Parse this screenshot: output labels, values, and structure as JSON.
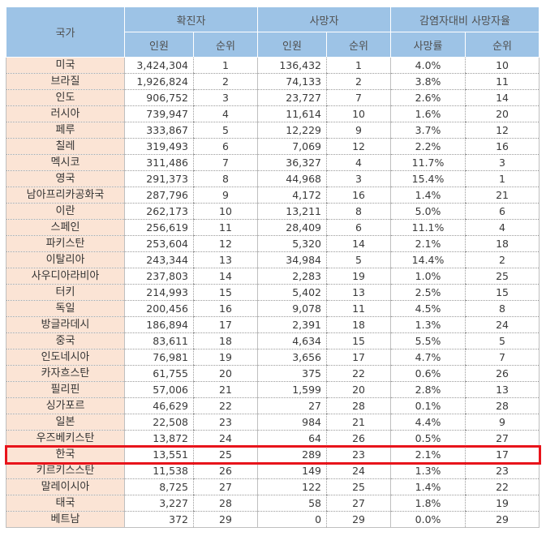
{
  "header": {
    "country": "국가",
    "groups": [
      "확진자",
      "사망자",
      "감염자대비 사망자율"
    ],
    "sub": [
      "인원",
      "순위",
      "인원",
      "순위",
      "사망률",
      "순위"
    ]
  },
  "rows": [
    [
      "미국",
      "3,424,304",
      "1",
      "136,432",
      "1",
      "4.0%",
      "10"
    ],
    [
      "브라질",
      "1,926,824",
      "2",
      "74,133",
      "2",
      "3.8%",
      "11"
    ],
    [
      "인도",
      "906,752",
      "3",
      "23,727",
      "7",
      "2.6%",
      "14"
    ],
    [
      "러시아",
      "739,947",
      "4",
      "11,614",
      "10",
      "1.6%",
      "20"
    ],
    [
      "페루",
      "333,867",
      "5",
      "12,229",
      "9",
      "3.7%",
      "12"
    ],
    [
      "칠레",
      "319,493",
      "6",
      "7,069",
      "12",
      "2.2%",
      "16"
    ],
    [
      "멕시코",
      "311,486",
      "7",
      "36,327",
      "4",
      "11.7%",
      "3"
    ],
    [
      "영국",
      "291,373",
      "8",
      "44,968",
      "3",
      "15.4%",
      "1"
    ],
    [
      "남아프리카공화국",
      "287,796",
      "9",
      "4,172",
      "16",
      "1.4%",
      "21"
    ],
    [
      "이란",
      "262,173",
      "10",
      "13,211",
      "8",
      "5.0%",
      "6"
    ],
    [
      "스페인",
      "256,619",
      "11",
      "28,409",
      "6",
      "11.1%",
      "4"
    ],
    [
      "파키스탄",
      "253,604",
      "12",
      "5,320",
      "14",
      "2.1%",
      "18"
    ],
    [
      "이탈리아",
      "243,344",
      "13",
      "34,984",
      "5",
      "14.4%",
      "2"
    ],
    [
      "사우디아라비아",
      "237,803",
      "14",
      "2,283",
      "19",
      "1.0%",
      "25"
    ],
    [
      "터키",
      "214,993",
      "15",
      "5,402",
      "13",
      "2.5%",
      "15"
    ],
    [
      "독일",
      "200,456",
      "16",
      "9,078",
      "11",
      "4.5%",
      "8"
    ],
    [
      "방글라데시",
      "186,894",
      "17",
      "2,391",
      "18",
      "1.3%",
      "24"
    ],
    [
      "중국",
      "83,611",
      "18",
      "4,634",
      "15",
      "5.5%",
      "5"
    ],
    [
      "인도네시아",
      "76,981",
      "19",
      "3,656",
      "17",
      "4.7%",
      "7"
    ],
    [
      "카자흐스탄",
      "61,755",
      "20",
      "375",
      "22",
      "0.6%",
      "26"
    ],
    [
      "필리핀",
      "57,006",
      "21",
      "1,599",
      "20",
      "2.8%",
      "13"
    ],
    [
      "싱가포르",
      "46,629",
      "22",
      "27",
      "28",
      "0.1%",
      "28"
    ],
    [
      "일본",
      "22,508",
      "23",
      "984",
      "21",
      "4.4%",
      "9"
    ],
    [
      "우즈베키스탄",
      "13,872",
      "24",
      "64",
      "26",
      "0.5%",
      "27"
    ],
    [
      "한국",
      "13,551",
      "25",
      "289",
      "23",
      "2.1%",
      "17"
    ],
    [
      "키르키스스탄",
      "11,538",
      "26",
      "149",
      "24",
      "1.3%",
      "23"
    ],
    [
      "말레이시아",
      "8,725",
      "27",
      "122",
      "25",
      "1.4%",
      "22"
    ],
    [
      "태국",
      "3,227",
      "28",
      "58",
      "27",
      "1.8%",
      "19"
    ],
    [
      "베트남",
      "372",
      "29",
      "0",
      "29",
      "0.0%",
      "29"
    ]
  ],
  "highlight_row_label": "한국",
  "colors": {
    "header_bg": "#9dc3e6",
    "country_bg": "#fbe4d5",
    "highlight_border": "#e8141b"
  }
}
